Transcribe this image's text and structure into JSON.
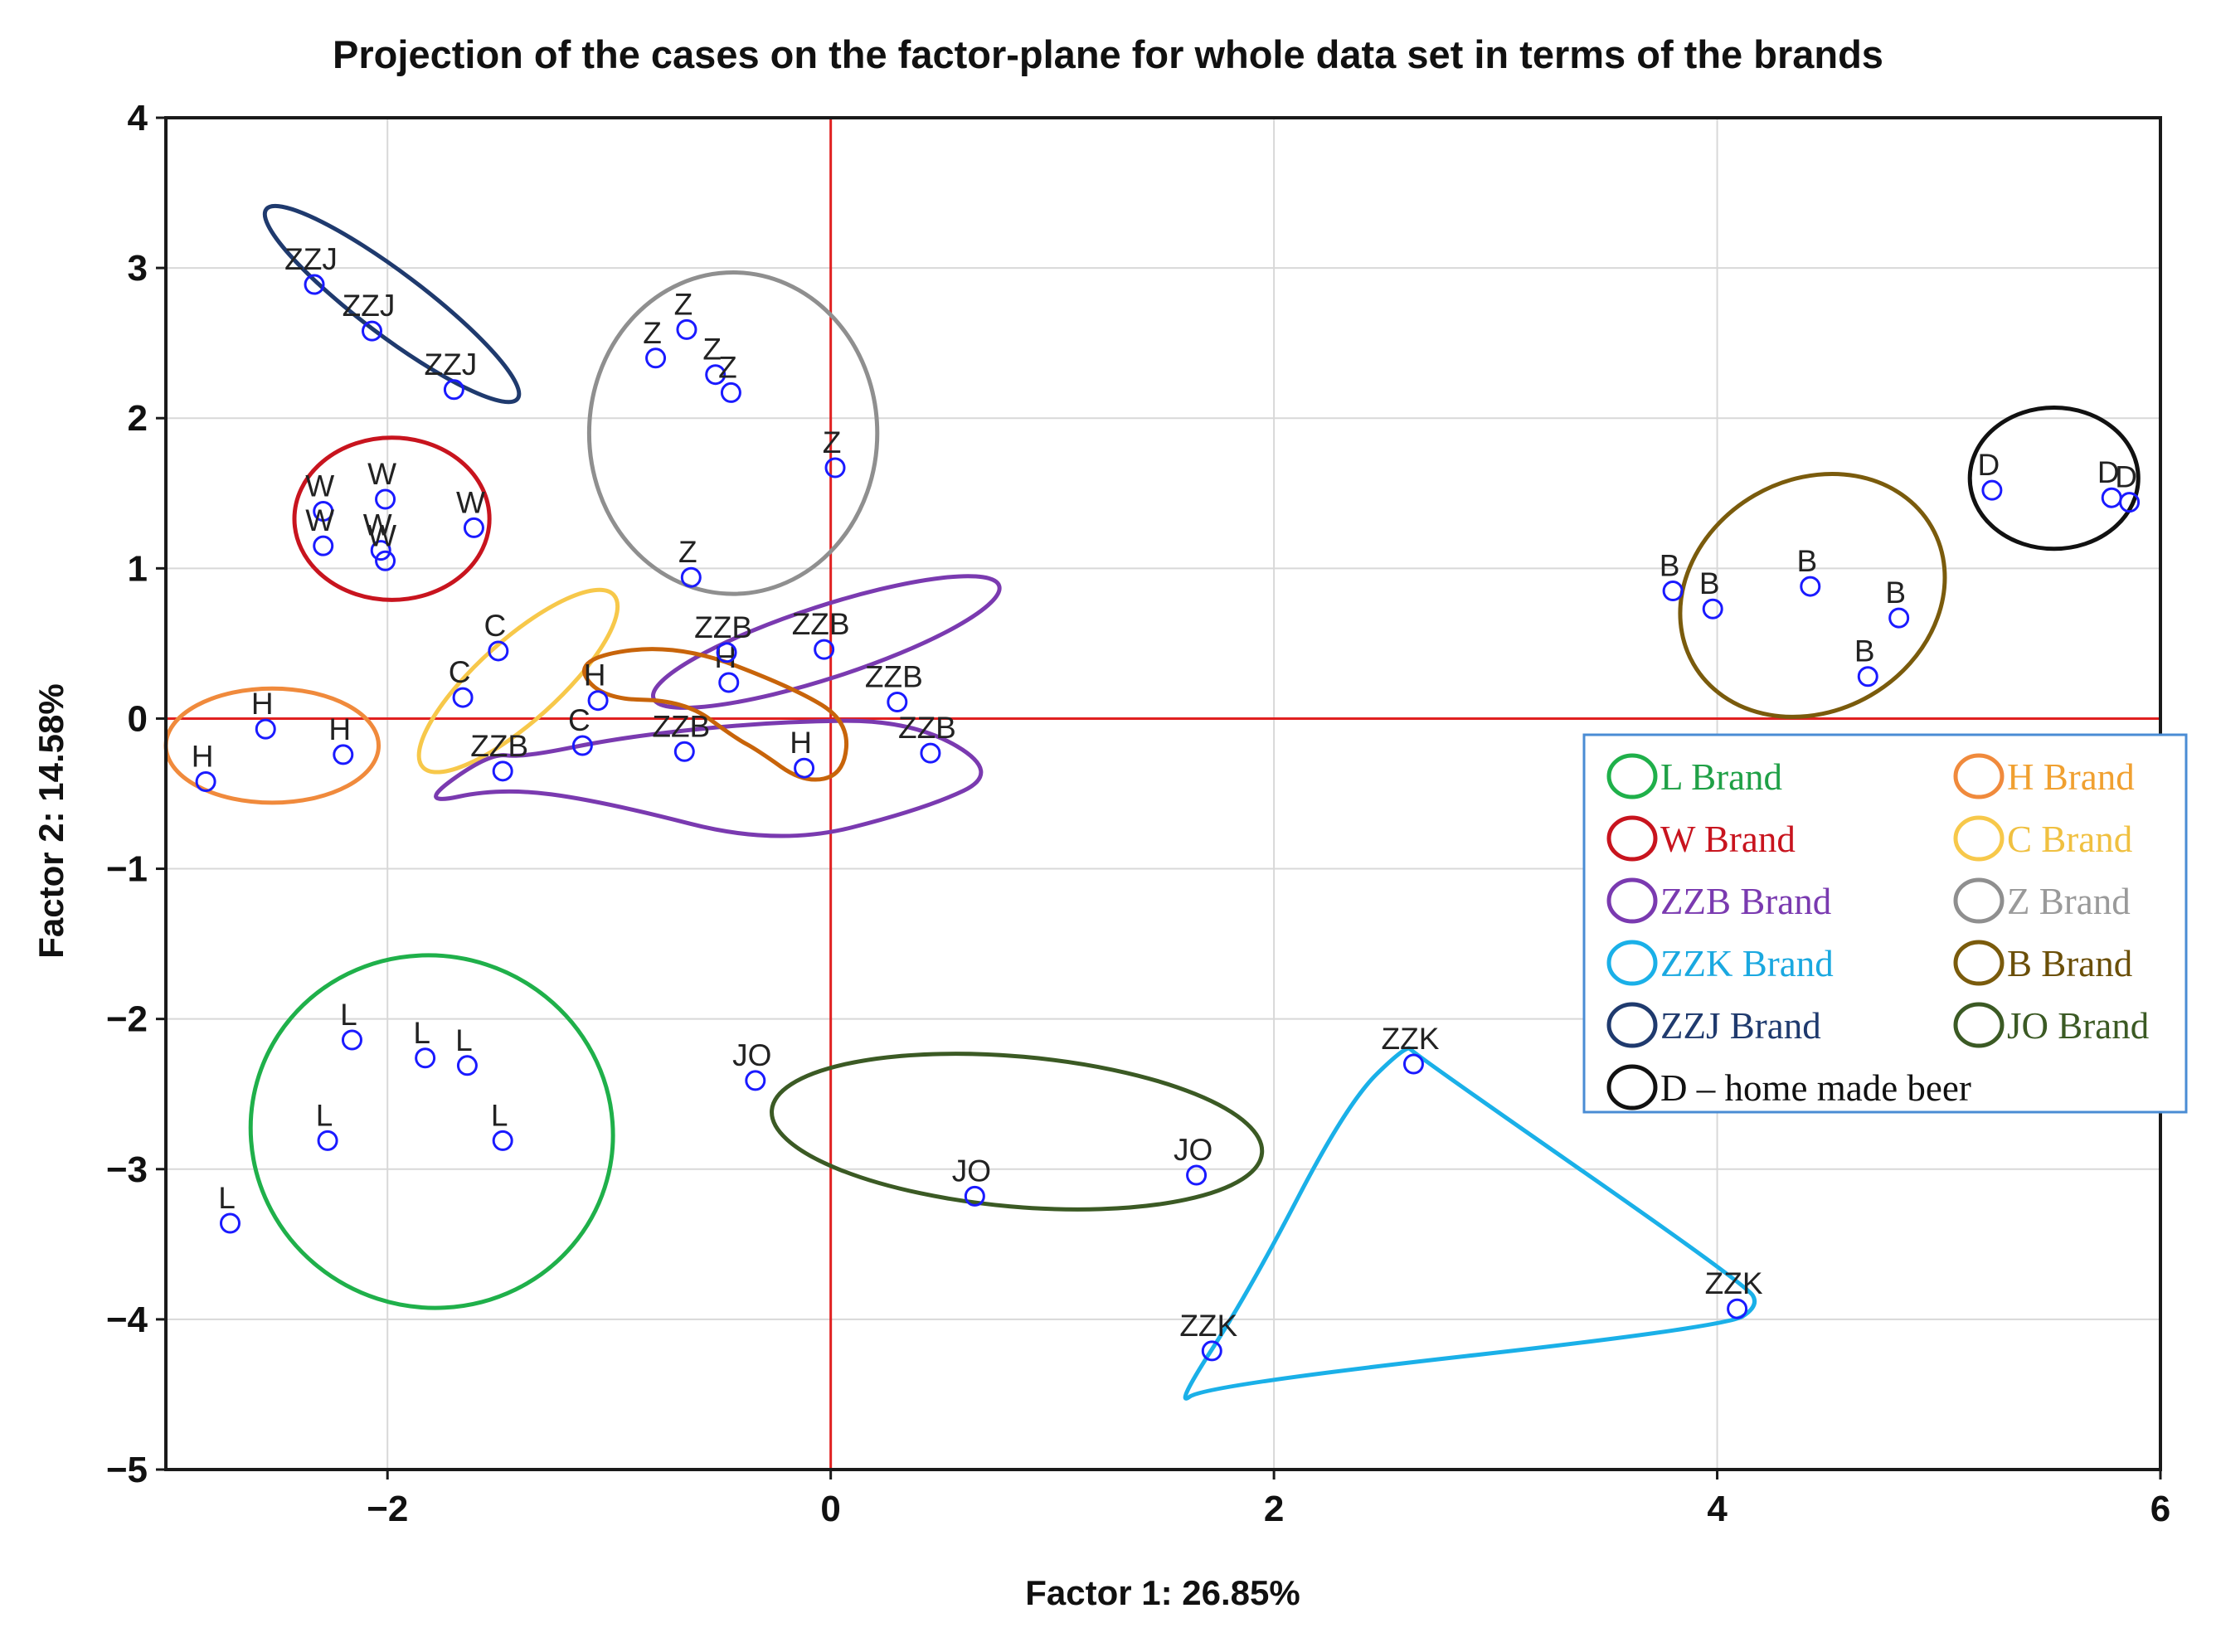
{
  "chart_data": {
    "type": "scatter",
    "title": "Projection of the cases on the factor-plane for whole data set in terms of the brands",
    "xlabel": "Factor 1: 26.85%",
    "ylabel": "Factor 2: 14.58%",
    "xlim": [
      -3,
      6
    ],
    "ylim": [
      -5,
      4
    ],
    "x_ticks": [
      -2,
      0,
      2,
      4,
      6
    ],
    "y_ticks": [
      4,
      3,
      2,
      1,
      0,
      -1,
      -2,
      -3,
      -4,
      -5
    ],
    "x_tick_labels": [
      "−2",
      "0",
      "2",
      "4",
      "6"
    ],
    "y_tick_labels": [
      "4",
      "3",
      "2",
      "1",
      "0",
      "−1",
      "−2",
      "−3",
      "−4",
      "−5"
    ],
    "grid": true,
    "reference_lines": {
      "x": 0,
      "y": 0,
      "color": "#e02020"
    },
    "marker_color": "#1a1aff",
    "points": [
      {
        "label": "ZZJ",
        "x": -2.33,
        "y": 2.89
      },
      {
        "label": "ZZJ",
        "x": -2.07,
        "y": 2.58
      },
      {
        "label": "ZZJ",
        "x": -1.7,
        "y": 2.19
      },
      {
        "label": "Z",
        "x": -0.65,
        "y": 2.59
      },
      {
        "label": "Z",
        "x": -0.79,
        "y": 2.4
      },
      {
        "label": "Z",
        "x": -0.52,
        "y": 2.29
      },
      {
        "label": "Z",
        "x": -0.45,
        "y": 2.17
      },
      {
        "label": "Z",
        "x": 0.02,
        "y": 1.67
      },
      {
        "label": "Z",
        "x": -0.63,
        "y": 0.94
      },
      {
        "label": "W",
        "x": -2.29,
        "y": 1.38
      },
      {
        "label": "W",
        "x": -2.01,
        "y": 1.46
      },
      {
        "label": "W",
        "x": -1.61,
        "y": 1.27
      },
      {
        "label": "W",
        "x": -2.29,
        "y": 1.15
      },
      {
        "label": "W",
        "x": -2.03,
        "y": 1.12
      },
      {
        "label": "W",
        "x": -2.01,
        "y": 1.05
      },
      {
        "label": "C",
        "x": -1.5,
        "y": 0.45
      },
      {
        "label": "C",
        "x": -1.66,
        "y": 0.14
      },
      {
        "label": "C",
        "x": -1.12,
        "y": -0.18
      },
      {
        "label": "H",
        "x": -2.55,
        "y": -0.07
      },
      {
        "label": "H",
        "x": -2.2,
        "y": -0.24
      },
      {
        "label": "H",
        "x": -2.82,
        "y": -0.42
      },
      {
        "label": "H",
        "x": -1.05,
        "y": 0.12
      },
      {
        "label": "H",
        "x": -0.46,
        "y": 0.24
      },
      {
        "label": "H",
        "x": -0.12,
        "y": -0.33
      },
      {
        "label": "ZZB",
        "x": -0.47,
        "y": 0.44
      },
      {
        "label": "ZZB",
        "x": -0.03,
        "y": 0.46
      },
      {
        "label": "ZZB",
        "x": 0.3,
        "y": 0.11
      },
      {
        "label": "ZZB",
        "x": -0.66,
        "y": -0.22
      },
      {
        "label": "ZZB",
        "x": 0.45,
        "y": -0.23
      },
      {
        "label": "ZZB",
        "x": -1.48,
        "y": -0.35
      },
      {
        "label": "B",
        "x": 3.8,
        "y": 0.85
      },
      {
        "label": "B",
        "x": 3.98,
        "y": 0.73
      },
      {
        "label": "B",
        "x": 4.42,
        "y": 0.88
      },
      {
        "label": "B",
        "x": 4.82,
        "y": 0.67
      },
      {
        "label": "B",
        "x": 4.68,
        "y": 0.28
      },
      {
        "label": "D",
        "x": 5.24,
        "y": 1.52
      },
      {
        "label": "D",
        "x": 5.78,
        "y": 1.47
      },
      {
        "label": "D",
        "x": 5.86,
        "y": 1.44
      },
      {
        "label": "L",
        "x": -2.16,
        "y": -2.14
      },
      {
        "label": "L",
        "x": -1.83,
        "y": -2.26
      },
      {
        "label": "L",
        "x": -1.64,
        "y": -2.31
      },
      {
        "label": "L",
        "x": -2.27,
        "y": -2.81
      },
      {
        "label": "L",
        "x": -1.48,
        "y": -2.81
      },
      {
        "label": "L",
        "x": -2.71,
        "y": -3.36
      },
      {
        "label": "JO",
        "x": -0.34,
        "y": -2.41
      },
      {
        "label": "JO",
        "x": 1.65,
        "y": -3.04
      },
      {
        "label": "JO",
        "x": 0.65,
        "y": -3.18
      },
      {
        "label": "ZZK",
        "x": 2.63,
        "y": -2.3
      },
      {
        "label": "ZZK",
        "x": 4.09,
        "y": -3.93
      },
      {
        "label": "ZZK",
        "x": 1.72,
        "y": -4.21
      }
    ],
    "groups": [
      {
        "name": "L Brand",
        "color": "#1fb04a",
        "shape": "ellipse",
        "cx": -1.8,
        "cy": -2.75,
        "rx": 0.82,
        "ry": 1.17,
        "rotate": 18
      },
      {
        "name": "H Brand",
        "color": "#f08a3c",
        "shape": "ellipse",
        "cx": -2.52,
        "cy": -0.18,
        "rx": 0.48,
        "ry": 0.38,
        "rotate": 0
      },
      {
        "name": "W Brand",
        "color": "#c8141e",
        "shape": "ellipse",
        "cx": -1.98,
        "cy": 1.33,
        "rx": 0.44,
        "ry": 0.54,
        "rotate": 0
      },
      {
        "name": "C Brand",
        "color": "#f7c84a",
        "shape": "ellipse",
        "cx": -1.41,
        "cy": 0.25,
        "rx": 0.58,
        "ry": 0.27,
        "rotate": -42
      },
      {
        "name": "ZZB Brand",
        "color": "#7a3ab0",
        "shape": "path",
        "dx": [
          -1.39,
          -0.93,
          -0.26,
          0.37,
          0.77,
          0.43,
          -0.24,
          -1.03,
          -1.49,
          -1.87,
          -1.54
        ],
        "dy": [
          -0.26,
          -0.12,
          -0.02,
          -0.01,
          -0.36,
          -0.6,
          -0.85,
          -0.55,
          -0.46,
          -0.58,
          -0.23
        ]
      },
      {
        "name": "ZZB Brand (upper)",
        "color": "#7a3ab0",
        "shape": "ellipse",
        "cx": -0.02,
        "cy": 0.51,
        "rx": 0.82,
        "ry": 0.24,
        "rotate": -18
      },
      {
        "name": "H Brand (centre)",
        "color": "#c8640a",
        "shape": "path",
        "dx": [
          -1.16,
          -0.69,
          -0.16,
          0.08,
          0.06,
          -0.12,
          -0.33,
          -0.43,
          -0.66,
          -1.04
        ],
        "dy": [
          0.4,
          0.5,
          0.2,
          -0.02,
          -0.37,
          -0.43,
          -0.21,
          -0.13,
          0.12,
          0.13
        ]
      },
      {
        "name": "ZZK Brand",
        "color": "#1ab0e8",
        "shape": "path",
        "dx": [
          2.6,
          2.63,
          4.13,
          4.19,
          4.04,
          1.69,
          1.55,
          1.89,
          2.33
        ],
        "dy": [
          -2.17,
          -2.23,
          -3.77,
          -3.91,
          -4.05,
          -4.44,
          -4.59,
          -3.81,
          -2.56
        ]
      },
      {
        "name": "ZZJ Brand",
        "color": "#1f3a6e",
        "shape": "ellipse",
        "cx": -1.98,
        "cy": 2.76,
        "rx": 0.71,
        "ry": 0.21,
        "rotate": 37
      },
      {
        "name": "Z Brand",
        "color": "#8f8f8f",
        "shape": "ellipse",
        "cx": -0.44,
        "cy": 1.9,
        "rx": 0.65,
        "ry": 1.07,
        "rotate": 0
      },
      {
        "name": "B Brand",
        "color": "#7a5b0c",
        "shape": "ellipse",
        "cx": 4.43,
        "cy": 0.82,
        "rx": 0.62,
        "ry": 0.77,
        "rotate": -30
      },
      {
        "name": "JO Brand",
        "color": "#3b5a24",
        "shape": "ellipse",
        "cx": 0.84,
        "cy": -2.75,
        "rx": 1.11,
        "ry": 0.5,
        "rotate": 5
      },
      {
        "name": "D – home made beer",
        "color": "#111111",
        "shape": "ellipse",
        "cx": 5.52,
        "cy": 1.6,
        "rx": 0.38,
        "ry": 0.47,
        "rotate": 0
      }
    ],
    "legend": {
      "position": "bottom-right",
      "border_color": "#4a8cd4",
      "items": [
        {
          "label": "L Brand",
          "color": "#1fb04a",
          "text_color": "#1fa046"
        },
        {
          "label": "H Brand",
          "color": "#f08a3c",
          "text_color": "#f0a030"
        },
        {
          "label": "W Brand",
          "color": "#c8141e",
          "text_color": "#c8141e"
        },
        {
          "label": "C Brand",
          "color": "#f7c84a",
          "text_color": "#f0c040"
        },
        {
          "label": "ZZB Brand",
          "color": "#7a3ab0",
          "text_color": "#7a3ab0"
        },
        {
          "label": "Z Brand",
          "color": "#8f8f8f",
          "text_color": "#9a9a9a"
        },
        {
          "label": "ZZK Brand",
          "color": "#1ab0e8",
          "text_color": "#1aa8e0"
        },
        {
          "label": "B Brand",
          "color": "#7a5b0c",
          "text_color": "#6b4f08"
        },
        {
          "label": "ZZJ Brand",
          "color": "#1f3a6e",
          "text_color": "#1f3a6e"
        },
        {
          "label": "JO Brand",
          "color": "#3b5a24",
          "text_color": "#3b5a24"
        },
        {
          "label": "D – home made beer",
          "color": "#111111",
          "text_color": "#111111"
        }
      ]
    }
  }
}
